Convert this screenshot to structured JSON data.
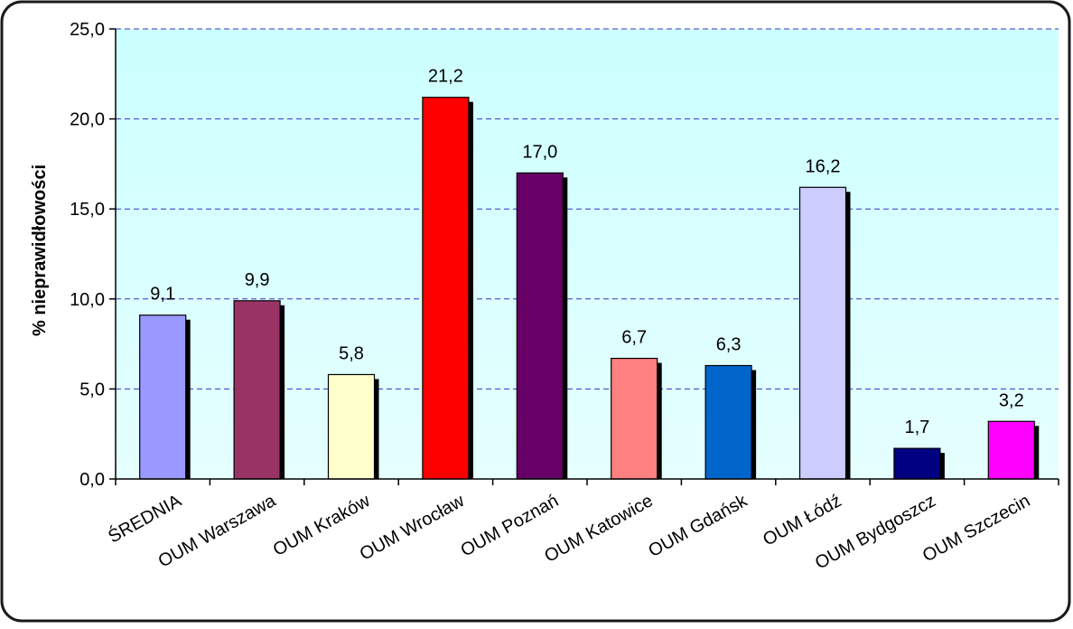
{
  "chart_data": {
    "type": "bar",
    "title": "",
    "xlabel": "",
    "ylabel": "% nieprawidłowości",
    "ylim": [
      0,
      25
    ],
    "yticks": [
      0,
      5,
      10,
      15,
      20,
      25
    ],
    "ytick_labels": [
      "0,0",
      "5,0",
      "10,0",
      "15,0",
      "20,0",
      "25,0"
    ],
    "grid": "horizontal dashed",
    "legend": "none",
    "categories": [
      "ŚREDNIA",
      "OUM Warszawa",
      "OUM Kraków",
      "OUM Wrocław",
      "OUM Poznań",
      "OUM Katowice",
      "OUM Gdańsk",
      "OUM Łódź",
      "OUM Bydgoszcz",
      "OUM Szczecin"
    ],
    "values": [
      9.1,
      9.9,
      5.8,
      21.2,
      17.0,
      6.7,
      6.3,
      16.2,
      1.7,
      3.2
    ],
    "value_labels": [
      "9,1",
      "9,9",
      "5,8",
      "21,2",
      "17,0",
      "6,7",
      "6,3",
      "16,2",
      "1,7",
      "3,2"
    ],
    "bar_colors": [
      "#9999FF",
      "#993366",
      "#FFFFCC",
      "#FF0000",
      "#660066",
      "#FF8080",
      "#0066CC",
      "#CCCCFF",
      "#000080",
      "#FF00FF"
    ],
    "plot_background": "#CCFFFF",
    "gridline_color": "#3333CC"
  }
}
